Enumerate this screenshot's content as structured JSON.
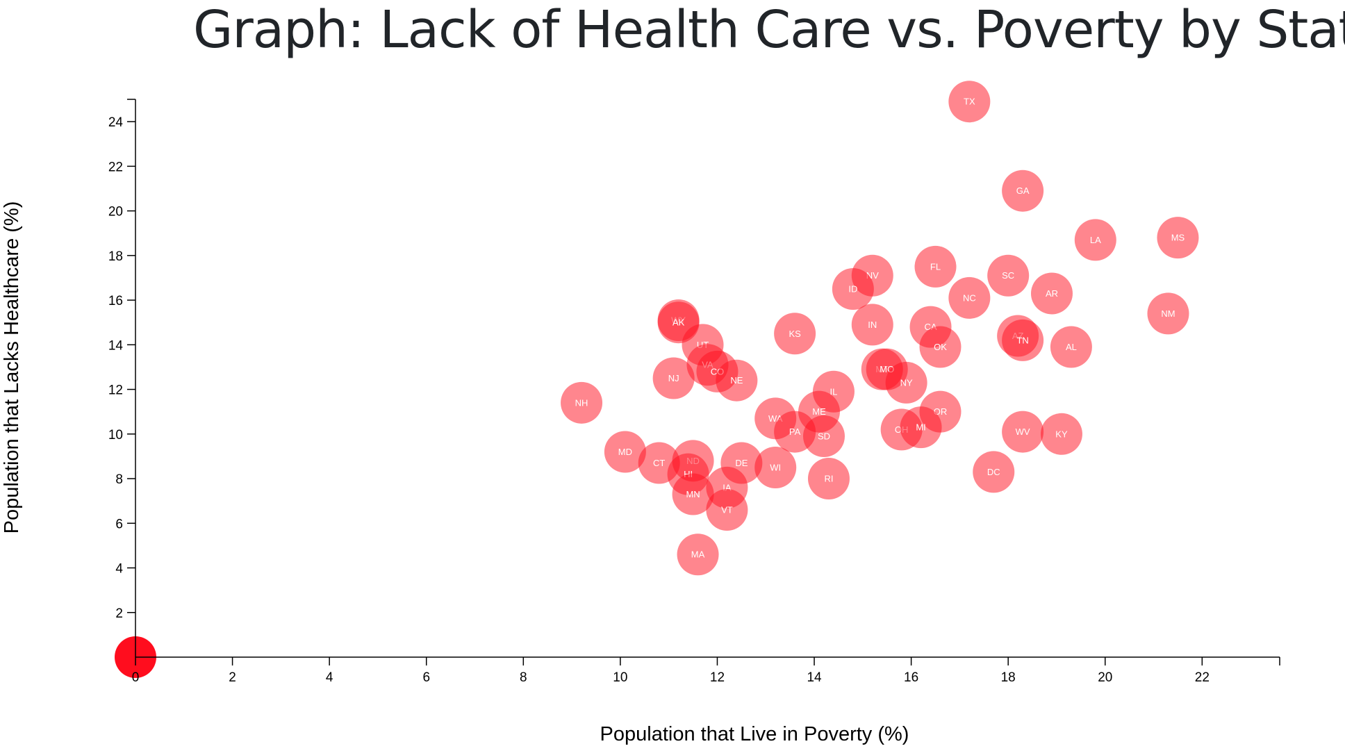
{
  "title": "Graph: Lack of Health Care vs. Poverty by State",
  "colors": {
    "circle": "#ff0d1e",
    "label": "#ffffff",
    "axis": "#000000"
  },
  "chart_data": {
    "type": "scatter",
    "title": "Graph: Lack of Health Care vs. Poverty by State",
    "xlabel": "Population that Live in Poverty (%)",
    "ylabel": "Population that Lacks Healthcare (%)",
    "xlim": [
      0,
      23.6
    ],
    "ylim": [
      0,
      25
    ],
    "xticks": [
      0,
      2,
      4,
      6,
      8,
      10,
      12,
      14,
      16,
      18,
      20,
      22
    ],
    "yticks": [
      2,
      4,
      6,
      8,
      10,
      12,
      14,
      16,
      18,
      20,
      22,
      24
    ],
    "grid": false,
    "legend": "none",
    "points": [
      {
        "label": "TX",
        "x": 17.2,
        "y": 24.9
      },
      {
        "label": "GA",
        "x": 18.3,
        "y": 20.9
      },
      {
        "label": "LA",
        "x": 19.8,
        "y": 18.7
      },
      {
        "label": "MS",
        "x": 21.5,
        "y": 18.8
      },
      {
        "label": "NV",
        "x": 15.2,
        "y": 17.1
      },
      {
        "label": "FL",
        "x": 16.5,
        "y": 17.5
      },
      {
        "label": "SC",
        "x": 18.0,
        "y": 17.1
      },
      {
        "label": "ID",
        "x": 14.8,
        "y": 16.5
      },
      {
        "label": "NC",
        "x": 17.2,
        "y": 16.1
      },
      {
        "label": "AR",
        "x": 18.9,
        "y": 16.3
      },
      {
        "label": "NM",
        "x": 21.3,
        "y": 15.4
      },
      {
        "label": "WY",
        "x": 11.2,
        "y": 15.1
      },
      {
        "label": "AK",
        "x": 11.2,
        "y": 15.0
      },
      {
        "label": "IN",
        "x": 15.2,
        "y": 14.9
      },
      {
        "label": "KS",
        "x": 13.6,
        "y": 14.5
      },
      {
        "label": "CA",
        "x": 16.4,
        "y": 14.8
      },
      {
        "label": "AZ",
        "x": 18.2,
        "y": 14.4
      },
      {
        "label": "TN",
        "x": 18.3,
        "y": 14.2
      },
      {
        "label": "OK",
        "x": 16.6,
        "y": 13.9
      },
      {
        "label": "AL",
        "x": 19.3,
        "y": 13.9
      },
      {
        "label": "UT",
        "x": 11.7,
        "y": 14.0
      },
      {
        "label": "VA",
        "x": 11.8,
        "y": 13.1
      },
      {
        "label": "CO",
        "x": 12.0,
        "y": 12.8
      },
      {
        "label": "NJ",
        "x": 11.1,
        "y": 12.5
      },
      {
        "label": "NE",
        "x": 12.4,
        "y": 12.4
      },
      {
        "label": "MT",
        "x": 15.4,
        "y": 12.9
      },
      {
        "label": "MO",
        "x": 15.5,
        "y": 12.9
      },
      {
        "label": "NY",
        "x": 15.9,
        "y": 12.3
      },
      {
        "label": "IL",
        "x": 14.4,
        "y": 11.9
      },
      {
        "label": "NH",
        "x": 9.2,
        "y": 11.4
      },
      {
        "label": "ME",
        "x": 14.1,
        "y": 11.0
      },
      {
        "label": "OR",
        "x": 16.6,
        "y": 11.0
      },
      {
        "label": "WA",
        "x": 13.2,
        "y": 10.7
      },
      {
        "label": "PA",
        "x": 13.6,
        "y": 10.1
      },
      {
        "label": "SD",
        "x": 14.2,
        "y": 9.9
      },
      {
        "label": "OH",
        "x": 15.8,
        "y": 10.2
      },
      {
        "label": "MI",
        "x": 16.2,
        "y": 10.3
      },
      {
        "label": "WV",
        "x": 18.3,
        "y": 10.1
      },
      {
        "label": "KY",
        "x": 19.1,
        "y": 10.0
      },
      {
        "label": "MD",
        "x": 10.1,
        "y": 9.2
      },
      {
        "label": "CT",
        "x": 10.8,
        "y": 8.7
      },
      {
        "label": "ND",
        "x": 11.5,
        "y": 8.8
      },
      {
        "label": "DE",
        "x": 12.5,
        "y": 8.7
      },
      {
        "label": "WI",
        "x": 13.2,
        "y": 8.5
      },
      {
        "label": "HI",
        "x": 11.4,
        "y": 8.2
      },
      {
        "label": "DC",
        "x": 17.7,
        "y": 8.3
      },
      {
        "label": "RI",
        "x": 14.3,
        "y": 8.0
      },
      {
        "label": "IA",
        "x": 12.2,
        "y": 7.6
      },
      {
        "label": "MN",
        "x": 11.5,
        "y": 7.3
      },
      {
        "label": "VT",
        "x": 12.2,
        "y": 6.6
      },
      {
        "label": "MA",
        "x": 11.6,
        "y": 4.6
      }
    ]
  }
}
